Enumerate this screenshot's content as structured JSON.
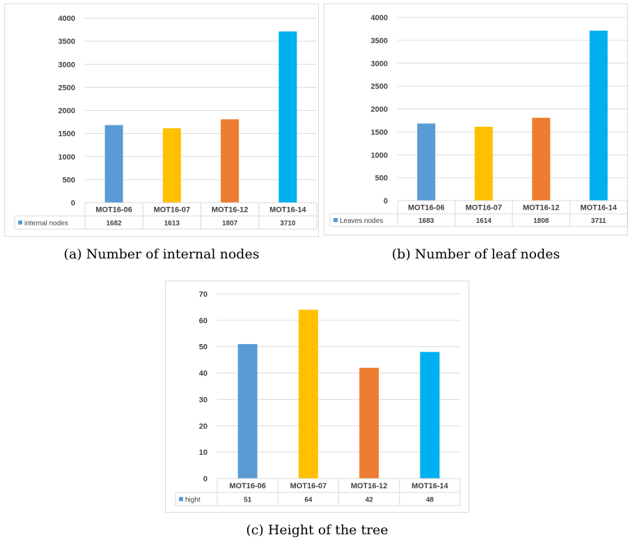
{
  "colors": {
    "MOT16-06": "#5b9bd5",
    "MOT16-07": "#ffc000",
    "MOT16-12": "#ed7d31",
    "MOT16-14": "#00b0f0",
    "grid": "#d9d9d9",
    "legend_marker": "#5b9bd5"
  },
  "captions": {
    "a": "(a) Number of internal nodes",
    "b": "(b) Number of leaf nodes",
    "c": "(c) Height of the tree"
  },
  "chart_data": [
    {
      "type": "bar",
      "categories": [
        "MOT16-06",
        "MOT16-07",
        "MOT16-12",
        "MOT16-14"
      ],
      "series": [
        {
          "name": "internal nodes",
          "values": [
            1682,
            1613,
            1807,
            3710
          ]
        }
      ],
      "table_values": [
        "1682",
        "1613",
        "1807",
        "3710"
      ],
      "yticks": [
        "0",
        "500",
        "1000",
        "1500",
        "2000",
        "2500",
        "3000",
        "3500",
        "4000"
      ],
      "ylim": [
        0,
        4000
      ],
      "grid": true,
      "legend": "data-table"
    },
    {
      "type": "bar",
      "categories": [
        "MOT16-06",
        "MOT16-07",
        "MOT16-12",
        "MOT16-14"
      ],
      "series": [
        {
          "name": "Leaves nodes",
          "values": [
            1683,
            1614,
            1808,
            3711
          ]
        }
      ],
      "table_values": [
        "1683",
        "1614",
        "1808",
        "3711"
      ],
      "yticks": [
        "0",
        "500",
        "1000",
        "1500",
        "2000",
        "2500",
        "3000",
        "3500",
        "4000"
      ],
      "ylim": [
        0,
        4000
      ],
      "grid": true,
      "legend": "data-table"
    },
    {
      "type": "bar",
      "categories": [
        "MOT16-06",
        "MOT16-07",
        "MOT16-12",
        "MOT16-14"
      ],
      "series": [
        {
          "name": "hight",
          "values": [
            51,
            64,
            42,
            48
          ]
        }
      ],
      "table_values": [
        "51",
        "64",
        "42",
        "48"
      ],
      "yticks": [
        "0",
        "10",
        "20",
        "30",
        "40",
        "50",
        "60",
        "70"
      ],
      "ylim": [
        0,
        70
      ],
      "grid": true,
      "legend": "data-table"
    }
  ]
}
